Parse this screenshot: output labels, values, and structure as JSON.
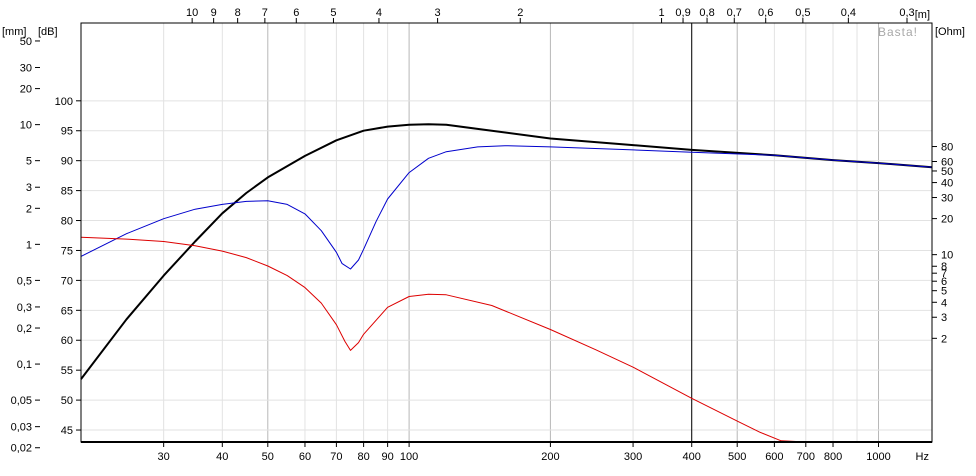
{
  "chart_data": {
    "type": "line",
    "x_scale": "log",
    "xlim": [
      20,
      1300
    ],
    "ylim_db": [
      43,
      113
    ],
    "x_ticks_bottom": [
      {
        "v": 30,
        "t": "30"
      },
      {
        "v": 40,
        "t": "40"
      },
      {
        "v": 50,
        "t": "50"
      },
      {
        "v": 60,
        "t": "60"
      },
      {
        "v": 70,
        "t": "70"
      },
      {
        "v": 80,
        "t": "80"
      },
      {
        "v": 90,
        "t": "90"
      },
      {
        "v": 100,
        "t": "100"
      },
      {
        "v": 200,
        "t": "200"
      },
      {
        "v": 300,
        "t": "300"
      },
      {
        "v": 400,
        "t": "400"
      },
      {
        "v": 500,
        "t": "500"
      },
      {
        "v": 600,
        "t": "600"
      },
      {
        "v": 700,
        "t": "700"
      },
      {
        "v": 800,
        "t": "800"
      },
      {
        "v": 1000,
        "t": "1000"
      }
    ],
    "x_unit_bottom": "Hz",
    "x_ticks_top": [
      {
        "v": 10,
        "t": "10"
      },
      {
        "v": 9,
        "t": "9"
      },
      {
        "v": 8,
        "t": "8"
      },
      {
        "v": 7,
        "t": "7"
      },
      {
        "v": 6,
        "t": "6"
      },
      {
        "v": 5,
        "t": "5"
      },
      {
        "v": 4,
        "t": "4"
      },
      {
        "v": 3,
        "t": "3"
      },
      {
        "v": 2,
        "t": "2"
      },
      {
        "v": 1,
        "t": "1"
      },
      {
        "v": 0.9,
        "t": "0,9"
      },
      {
        "v": 0.8,
        "t": "0,8"
      },
      {
        "v": 0.7,
        "t": "0,7"
      },
      {
        "v": 0.6,
        "t": "0,6"
      },
      {
        "v": 0.5,
        "t": "0,5"
      },
      {
        "v": 0.4,
        "t": "0,4"
      },
      {
        "v": 0.3,
        "t": "0,3"
      }
    ],
    "x_unit_top": "[m]",
    "y_ticks_db": [
      {
        "v": 45,
        "t": "45"
      },
      {
        "v": 50,
        "t": "50"
      },
      {
        "v": 55,
        "t": "55"
      },
      {
        "v": 60,
        "t": "60"
      },
      {
        "v": 65,
        "t": "65"
      },
      {
        "v": 70,
        "t": "70"
      },
      {
        "v": 75,
        "t": "75"
      },
      {
        "v": 80,
        "t": "80"
      },
      {
        "v": 85,
        "t": "85"
      },
      {
        "v": 90,
        "t": "90"
      },
      {
        "v": 95,
        "t": "95"
      },
      {
        "v": 100,
        "t": "100"
      }
    ],
    "y_unit_db": "[dB]",
    "y_ticks_mm": [
      {
        "v": 0.02,
        "t": "0,02"
      },
      {
        "v": 0.03,
        "t": "0,03"
      },
      {
        "v": 0.05,
        "t": "0,05"
      },
      {
        "v": 0.1,
        "t": "0,1"
      },
      {
        "v": 0.2,
        "t": "0,2"
      },
      {
        "v": 0.3,
        "t": "0,3"
      },
      {
        "v": 0.5,
        "t": "0,5"
      },
      {
        "v": 1,
        "t": "1"
      },
      {
        "v": 2,
        "t": "2"
      },
      {
        "v": 3,
        "t": "3"
      },
      {
        "v": 5,
        "t": "5"
      },
      {
        "v": 10,
        "t": "10"
      },
      {
        "v": 20,
        "t": "20"
      },
      {
        "v": 30,
        "t": "30"
      },
      {
        "v": 50,
        "t": "50"
      }
    ],
    "y_unit_mm": "[mm]",
    "y_ticks_ohm": [
      {
        "v": 2,
        "t": "2"
      },
      {
        "v": 3,
        "t": "3"
      },
      {
        "v": 4,
        "t": "4"
      },
      {
        "v": 5,
        "t": "5"
      },
      {
        "v": 6,
        "t": "6"
      },
      {
        "v": 7,
        "t": "7"
      },
      {
        "v": 8,
        "t": "8"
      },
      {
        "v": 10,
        "t": "10"
      },
      {
        "v": 20,
        "t": "20"
      },
      {
        "v": 30,
        "t": "30"
      },
      {
        "v": 40,
        "t": "40"
      },
      {
        "v": 50,
        "t": "50"
      },
      {
        "v": 60,
        "t": "60"
      },
      {
        "v": 80,
        "t": "80"
      }
    ],
    "y_unit_ohm": "[Ohm]",
    "marker_x": 400,
    "grid": true,
    "watermark": "Basta!",
    "series": [
      {
        "color": "#000000",
        "width": 2,
        "points": [
          [
            20,
            53.5
          ],
          [
            25,
            63.5
          ],
          [
            30,
            70.8
          ],
          [
            35,
            76.5
          ],
          [
            40,
            81.2
          ],
          [
            45,
            84.6
          ],
          [
            50,
            87.2
          ],
          [
            60,
            90.8
          ],
          [
            70,
            93.4
          ],
          [
            80,
            95
          ],
          [
            90,
            95.7
          ],
          [
            100,
            96
          ],
          [
            110,
            96.1
          ],
          [
            120,
            96
          ],
          [
            150,
            95
          ],
          [
            200,
            93.7
          ],
          [
            300,
            92.6
          ],
          [
            400,
            91.8
          ],
          [
            600,
            90.9
          ],
          [
            800,
            90.1
          ],
          [
            1000,
            89.6
          ],
          [
            1300,
            88.9
          ]
        ]
      },
      {
        "color": "#0000cc",
        "width": 1,
        "points": [
          [
            20,
            74
          ],
          [
            25,
            77.8
          ],
          [
            30,
            80.3
          ],
          [
            35,
            81.9
          ],
          [
            40,
            82.7
          ],
          [
            45,
            83.2
          ],
          [
            50,
            83.3
          ],
          [
            55,
            82.7
          ],
          [
            60,
            81.1
          ],
          [
            65,
            78.3
          ],
          [
            70,
            74.7
          ],
          [
            72,
            72.8
          ],
          [
            75,
            71.9
          ],
          [
            78,
            73.4
          ],
          [
            80,
            75.2
          ],
          [
            85,
            79.8
          ],
          [
            90,
            83.6
          ],
          [
            100,
            88
          ],
          [
            110,
            90.4
          ],
          [
            120,
            91.5
          ],
          [
            140,
            92.3
          ],
          [
            160,
            92.5
          ],
          [
            200,
            92.3
          ],
          [
            300,
            91.8
          ],
          [
            400,
            91.4
          ],
          [
            600,
            90.9
          ],
          [
            800,
            90.1
          ],
          [
            1000,
            89.6
          ],
          [
            1300,
            88.9
          ]
        ]
      },
      {
        "color": "#dd0000",
        "width": 1,
        "points": [
          [
            20,
            77.2
          ],
          [
            25,
            76.9
          ],
          [
            30,
            76.5
          ],
          [
            35,
            75.8
          ],
          [
            40,
            74.9
          ],
          [
            45,
            73.8
          ],
          [
            50,
            72.4
          ],
          [
            55,
            70.8
          ],
          [
            60,
            68.8
          ],
          [
            65,
            66.2
          ],
          [
            70,
            62.6
          ],
          [
            73,
            59.8
          ],
          [
            75,
            58.3
          ],
          [
            78,
            59.6
          ],
          [
            80,
            61
          ],
          [
            90,
            65.5
          ],
          [
            100,
            67.3
          ],
          [
            110,
            67.7
          ],
          [
            120,
            67.6
          ],
          [
            150,
            65.8
          ],
          [
            200,
            61.8
          ],
          [
            250,
            58.4
          ],
          [
            300,
            55.5
          ],
          [
            400,
            50.3
          ],
          [
            500,
            46.5
          ],
          [
            560,
            44.6
          ],
          [
            620,
            43.2
          ],
          [
            700,
            43
          ],
          [
            1300,
            43
          ]
        ]
      }
    ]
  }
}
